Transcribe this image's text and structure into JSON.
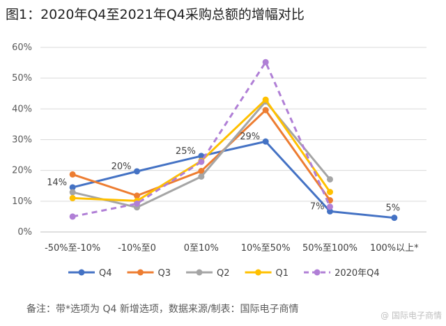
{
  "title": "图1：2020年Q4至2021年Q4采购总额的增幅对比",
  "footer": "备注：带*选项为 Q4 新增选项，数据来源/制表：国际电子商情",
  "watermark": "@ 国际电子商情",
  "chart_data": {
    "type": "line",
    "title": "图1：2020年Q4至2021年Q4采购总额的增幅对比",
    "xlabel": "",
    "ylabel": "",
    "categories": [
      "-50%至-10%",
      "-10%至0",
      "0至10%",
      "10%至50%",
      "50%至100%",
      "100%以上*"
    ],
    "ylim": [
      0,
      60
    ],
    "yticks": [
      "0%",
      "10%",
      "20%",
      "30%",
      "40%",
      "50%",
      "60%"
    ],
    "grid": true,
    "legend_position": "bottom",
    "series": [
      {
        "name": "Q4",
        "color": "#4472C4",
        "dashed": false,
        "values": [
          14.5,
          19.7,
          24.7,
          29.4,
          6.7,
          4.6
        ]
      },
      {
        "name": "Q3",
        "color": "#ED7D31",
        "dashed": false,
        "values": [
          18.7,
          11.8,
          19.8,
          39.6,
          10.3,
          null
        ]
      },
      {
        "name": "Q2",
        "color": "#A5A5A5",
        "dashed": false,
        "values": [
          12.9,
          8.0,
          18.0,
          42.4,
          17.1,
          null
        ]
      },
      {
        "name": "Q1",
        "color": "#FFC000",
        "dashed": false,
        "values": [
          11.0,
          10.1,
          23.1,
          43.0,
          13.0,
          null
        ]
      },
      {
        "name": "2020年Q4",
        "color": "#B07FD6",
        "dashed": true,
        "values": [
          5.0,
          9.2,
          22.8,
          55.2,
          8.2,
          null
        ]
      }
    ],
    "data_labels": [
      {
        "series": "Q4",
        "index": 0,
        "text": "14%",
        "anchor": "left"
      },
      {
        "series": "Q4",
        "index": 1,
        "text": "20%",
        "anchor": "left"
      },
      {
        "series": "Q4",
        "index": 2,
        "text": "25%",
        "anchor": "left"
      },
      {
        "series": "Q4",
        "index": 3,
        "text": "29%",
        "anchor": "left"
      },
      {
        "series": "Q4",
        "index": 4,
        "text": "7%",
        "anchor": "left"
      },
      {
        "series": "Q4",
        "index": 5,
        "text": "5%",
        "anchor": "above"
      }
    ]
  }
}
